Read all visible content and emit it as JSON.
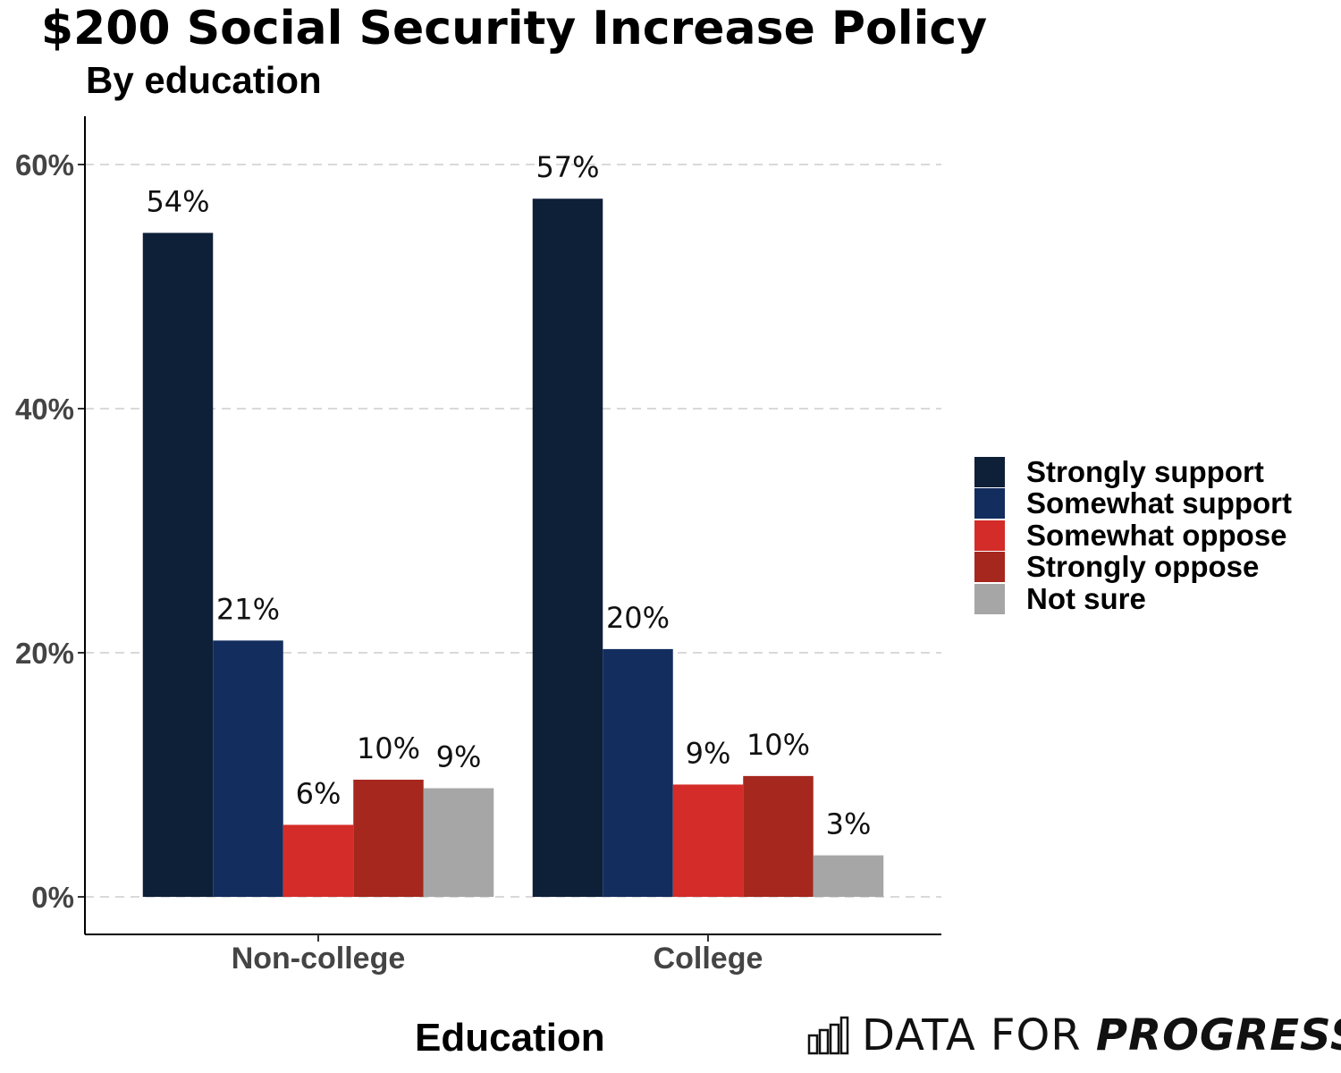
{
  "chart_data": {
    "type": "bar",
    "title": "$200 Social Security Increase Policy",
    "subtitle": "By education",
    "xlabel": "Education",
    "ylabel": "",
    "categories": [
      "Non-college",
      "College"
    ],
    "series": [
      {
        "name": "Strongly support",
        "color": "#0e1f38",
        "values": [
          54.4,
          57.2
        ],
        "labels": [
          "54%",
          "57%"
        ]
      },
      {
        "name": "Somewhat support",
        "color": "#132d5e",
        "values": [
          21.0,
          20.3
        ],
        "labels": [
          "21%",
          "20%"
        ]
      },
      {
        "name": "Somewhat oppose",
        "color": "#d42c28",
        "values": [
          5.9,
          9.2
        ],
        "labels": [
          "6%",
          "9%"
        ]
      },
      {
        "name": "Strongly oppose",
        "color": "#a5271e",
        "values": [
          9.6,
          9.9
        ],
        "labels": [
          "10%",
          "10%"
        ]
      },
      {
        "name": "Not sure",
        "color": "#a6a6a6",
        "values": [
          8.9,
          3.4
        ],
        "labels": [
          "9%",
          "3%"
        ]
      }
    ],
    "ylim": [
      0,
      60
    ],
    "yticks": [
      "0%",
      "20%",
      "40%",
      "60%"
    ],
    "ytick_values": [
      0,
      20,
      40,
      60
    ],
    "grid": "horizontal dashed",
    "legend": "right"
  },
  "logo": {
    "text_light": "DATA FOR ",
    "text_bold": "PROGRESS",
    "icon": "bar-chart-icon"
  }
}
